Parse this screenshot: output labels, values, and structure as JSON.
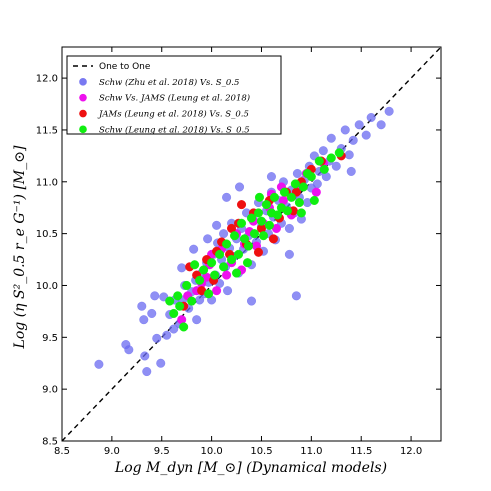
{
  "chart_data": {
    "type": "scatter",
    "title": "",
    "xlabel": "Log M_dyn [M_⊙] (Dynamical models)",
    "ylabel": "Log (η S²_0.5 r_e G⁻¹) [M_⊙]",
    "xlim": [
      8.5,
      12.3
    ],
    "ylim": [
      8.5,
      12.3
    ],
    "xticks": [
      "8.5",
      "9.0",
      "9.5",
      "10.0",
      "10.5",
      "11.0",
      "11.5",
      "12.0"
    ],
    "yticks": [
      "8.5",
      "9.0",
      "9.5",
      "10.0",
      "10.5",
      "11.0",
      "11.5",
      "12.0"
    ],
    "grid": false,
    "legend_position": "top-left",
    "reference_line": {
      "name": "One to One",
      "style": "dashed",
      "color": "#000000"
    },
    "series": [
      {
        "name": "Schw (Zhu et al. 2018) Vs. S_0.5",
        "color": "#6a6af0",
        "points": [
          [
            8.87,
            9.24
          ],
          [
            9.14,
            9.43
          ],
          [
            9.17,
            9.38
          ],
          [
            9.33,
            9.32
          ],
          [
            9.35,
            9.17
          ],
          [
            9.4,
            9.73
          ],
          [
            9.45,
            9.49
          ],
          [
            9.49,
            9.25
          ],
          [
            9.55,
            9.52
          ],
          [
            9.32,
            9.67
          ],
          [
            9.3,
            9.8
          ],
          [
            9.43,
            9.9
          ],
          [
            9.52,
            9.89
          ],
          [
            9.58,
            9.72
          ],
          [
            9.62,
            9.58
          ],
          [
            9.63,
            9.86
          ],
          [
            9.68,
            9.63
          ],
          [
            9.71,
            9.86
          ],
          [
            9.73,
            10.0
          ],
          [
            9.77,
            9.78
          ],
          [
            9.8,
            9.94
          ],
          [
            9.84,
            10.05
          ],
          [
            9.85,
            9.67
          ],
          [
            9.88,
            9.86
          ],
          [
            9.9,
            10.12
          ],
          [
            9.93,
            9.92
          ],
          [
            9.95,
            10.22
          ],
          [
            9.97,
            10.03
          ],
          [
            10.0,
            9.86
          ],
          [
            10.02,
            10.3
          ],
          [
            10.04,
            10.1
          ],
          [
            10.06,
            10.41
          ],
          [
            10.08,
            10.02
          ],
          [
            10.1,
            10.25
          ],
          [
            10.12,
            10.5
          ],
          [
            10.14,
            10.18
          ],
          [
            10.16,
            9.95
          ],
          [
            10.18,
            10.36
          ],
          [
            10.2,
            10.6
          ],
          [
            10.22,
            10.28
          ],
          [
            10.25,
            10.45
          ],
          [
            10.27,
            10.12
          ],
          [
            10.3,
            10.55
          ],
          [
            10.32,
            10.35
          ],
          [
            10.35,
            10.7
          ],
          [
            10.37,
            10.48
          ],
          [
            10.4,
            10.2
          ],
          [
            10.42,
            10.63
          ],
          [
            10.45,
            10.42
          ],
          [
            10.47,
            10.8
          ],
          [
            10.5,
            10.57
          ],
          [
            10.52,
            10.33
          ],
          [
            10.55,
            10.72
          ],
          [
            10.57,
            10.5
          ],
          [
            10.6,
            10.9
          ],
          [
            10.62,
            10.66
          ],
          [
            10.64,
            10.44
          ],
          [
            10.67,
            10.82
          ],
          [
            10.7,
            10.6
          ],
          [
            10.72,
            11.0
          ],
          [
            10.75,
            10.76
          ],
          [
            10.78,
            10.55
          ],
          [
            10.8,
            10.92
          ],
          [
            10.83,
            10.7
          ],
          [
            10.86,
            11.08
          ],
          [
            10.88,
            10.85
          ],
          [
            10.9,
            10.64
          ],
          [
            10.93,
            11.02
          ],
          [
            10.96,
            10.8
          ],
          [
            10.98,
            11.15
          ],
          [
            11.0,
            10.94
          ],
          [
            11.03,
            11.25
          ],
          [
            11.06,
            10.98
          ],
          [
            11.08,
            11.1
          ],
          [
            11.12,
            11.3
          ],
          [
            11.15,
            11.05
          ],
          [
            11.18,
            11.2
          ],
          [
            11.2,
            11.42
          ],
          [
            11.25,
            11.15
          ],
          [
            11.3,
            11.32
          ],
          [
            11.34,
            11.5
          ],
          [
            11.38,
            11.26
          ],
          [
            11.42,
            11.4
          ],
          [
            11.48,
            11.55
          ],
          [
            11.55,
            11.45
          ],
          [
            11.6,
            11.62
          ],
          [
            11.7,
            11.55
          ],
          [
            11.78,
            11.68
          ],
          [
            10.85,
            9.9
          ],
          [
            10.4,
            9.85
          ],
          [
            10.78,
            10.3
          ],
          [
            11.4,
            11.1
          ],
          [
            10.15,
            10.85
          ],
          [
            9.96,
            10.45
          ],
          [
            10.6,
            11.05
          ],
          [
            10.05,
            10.58
          ],
          [
            10.28,
            10.95
          ],
          [
            9.7,
            10.17
          ],
          [
            9.82,
            10.35
          ]
        ]
      },
      {
        "name": "Schw Vs. JAMS (Leung et al. 2018)",
        "color": "#ee10ee",
        "points": [
          [
            9.7,
            9.67
          ],
          [
            9.76,
            9.9
          ],
          [
            9.9,
            10.02
          ],
          [
            9.98,
            10.2
          ],
          [
            10.05,
            9.95
          ],
          [
            10.1,
            10.35
          ],
          [
            10.2,
            10.22
          ],
          [
            10.25,
            10.5
          ],
          [
            10.3,
            10.15
          ],
          [
            10.38,
            10.52
          ],
          [
            10.45,
            10.38
          ],
          [
            10.52,
            10.6
          ],
          [
            10.58,
            10.75
          ],
          [
            10.65,
            10.55
          ],
          [
            10.72,
            10.82
          ],
          [
            10.8,
            10.68
          ],
          [
            10.88,
            10.95
          ],
          [
            10.95,
            11.08
          ],
          [
            11.05,
            10.9
          ],
          [
            11.12,
            11.18
          ],
          [
            10.42,
            10.62
          ],
          [
            10.15,
            10.1
          ],
          [
            9.95,
            10.08
          ],
          [
            10.6,
            10.88
          ],
          [
            10.33,
            10.4
          ],
          [
            10.0,
            10.3
          ],
          [
            9.85,
            9.95
          ],
          [
            10.7,
            10.95
          ]
        ]
      },
      {
        "name": "JAMs (Leung et al. 2018) Vs. S_0.5",
        "color": "#ee1010",
        "points": [
          [
            9.72,
            9.8
          ],
          [
            9.78,
            10.18
          ],
          [
            9.85,
            10.1
          ],
          [
            9.95,
            10.25
          ],
          [
            10.02,
            10.05
          ],
          [
            10.1,
            10.42
          ],
          [
            10.18,
            10.3
          ],
          [
            10.27,
            10.6
          ],
          [
            10.35,
            10.4
          ],
          [
            10.42,
            10.7
          ],
          [
            10.5,
            10.55
          ],
          [
            10.58,
            10.82
          ],
          [
            10.68,
            10.65
          ],
          [
            10.75,
            10.9
          ],
          [
            10.82,
            10.72
          ],
          [
            10.9,
            11.0
          ],
          [
            11.0,
            11.12
          ],
          [
            11.1,
            11.2
          ],
          [
            11.3,
            11.25
          ],
          [
            10.47,
            10.32
          ],
          [
            10.2,
            10.55
          ],
          [
            9.9,
            9.95
          ],
          [
            10.62,
            10.45
          ],
          [
            10.05,
            10.33
          ],
          [
            10.3,
            10.78
          ],
          [
            10.85,
            10.9
          ]
        ]
      },
      {
        "name": "Schw (Leung et al. 2018) Vs. S_0.5",
        "color": "#10ee10",
        "points": [
          [
            9.58,
            9.85
          ],
          [
            9.62,
            9.73
          ],
          [
            9.68,
            9.8
          ],
          [
            9.72,
            9.6
          ],
          [
            9.75,
            10.0
          ],
          [
            9.8,
            9.85
          ],
          [
            9.83,
            10.2
          ],
          [
            9.88,
            10.05
          ],
          [
            9.92,
            10.15
          ],
          [
            9.97,
            9.92
          ],
          [
            10.0,
            10.22
          ],
          [
            10.03,
            10.1
          ],
          [
            10.08,
            10.3
          ],
          [
            10.12,
            10.18
          ],
          [
            10.15,
            10.4
          ],
          [
            10.2,
            10.25
          ],
          [
            10.23,
            10.48
          ],
          [
            10.27,
            10.3
          ],
          [
            10.3,
            10.6
          ],
          [
            10.33,
            10.45
          ],
          [
            10.37,
            10.38
          ],
          [
            10.4,
            10.65
          ],
          [
            10.43,
            10.5
          ],
          [
            10.47,
            10.7
          ],
          [
            10.5,
            10.62
          ],
          [
            10.52,
            10.48
          ],
          [
            10.55,
            10.78
          ],
          [
            10.58,
            10.58
          ],
          [
            10.6,
            10.7
          ],
          [
            10.63,
            10.85
          ],
          [
            10.66,
            10.68
          ],
          [
            10.7,
            10.75
          ],
          [
            10.73,
            10.9
          ],
          [
            10.76,
            10.72
          ],
          [
            10.8,
            10.85
          ],
          [
            10.84,
            10.98
          ],
          [
            10.88,
            10.8
          ],
          [
            10.92,
            10.95
          ],
          [
            10.96,
            11.08
          ],
          [
            11.0,
            11.05
          ],
          [
            11.03,
            10.82
          ],
          [
            11.08,
            11.2
          ],
          [
            11.13,
            11.12
          ],
          [
            11.2,
            11.23
          ],
          [
            11.28,
            11.28
          ],
          [
            9.66,
            9.9
          ],
          [
            10.36,
            10.22
          ],
          [
            10.48,
            10.85
          ],
          [
            10.25,
            10.12
          ],
          [
            10.9,
            10.7
          ]
        ]
      }
    ]
  }
}
